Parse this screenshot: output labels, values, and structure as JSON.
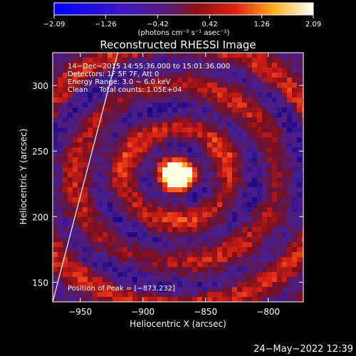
{
  "chart_data": {
    "type": "heatmap",
    "title": "Reconstructed RHESSI Image",
    "xlabel": "Heliocentric X (arcsec)",
    "ylabel": "Heliocentric Y (arcsec)",
    "xlim": [
      -972,
      -772
    ],
    "ylim": [
      135,
      325
    ],
    "x_ticks": [
      -950,
      -900,
      -850,
      -800
    ],
    "x_tick_labels": [
      "−950",
      "−900",
      "−850",
      "−800"
    ],
    "y_ticks": [
      150,
      200,
      250,
      300
    ],
    "y_tick_labels": [
      "150",
      "200",
      "250",
      "300"
    ],
    "colorbar": {
      "colormap": "blue-purple-red-yellow-white",
      "min": -2.09,
      "max": 2.09,
      "ticks": [
        -2.09,
        -1.26,
        -0.42,
        0.42,
        1.26,
        2.09
      ],
      "tick_labels": [
        "−2.09",
        "−1.26",
        "−0.42",
        "0.42",
        "1.26",
        "2.09"
      ],
      "units_label": "(photons cm⁻² s⁻¹ asec⁻²)"
    },
    "annotations": [
      "14−Dec−2015 14:55:36.000 to 15:01:36.000",
      "Detectors: 1F 5F 7F, Att 0",
      "Energy Range: 3.0 − 6.0 keV",
      "Clean     Total counts: 1.05E+04"
    ],
    "peak_label": "Position of Peak = [−873,232]",
    "peak_position": [
      -873,
      232
    ],
    "limb_line": {
      "from": [
        -972,
        135
      ],
      "to": [
        -920,
        325
      ]
    },
    "footer_date": "24−May−2022 12:39"
  }
}
